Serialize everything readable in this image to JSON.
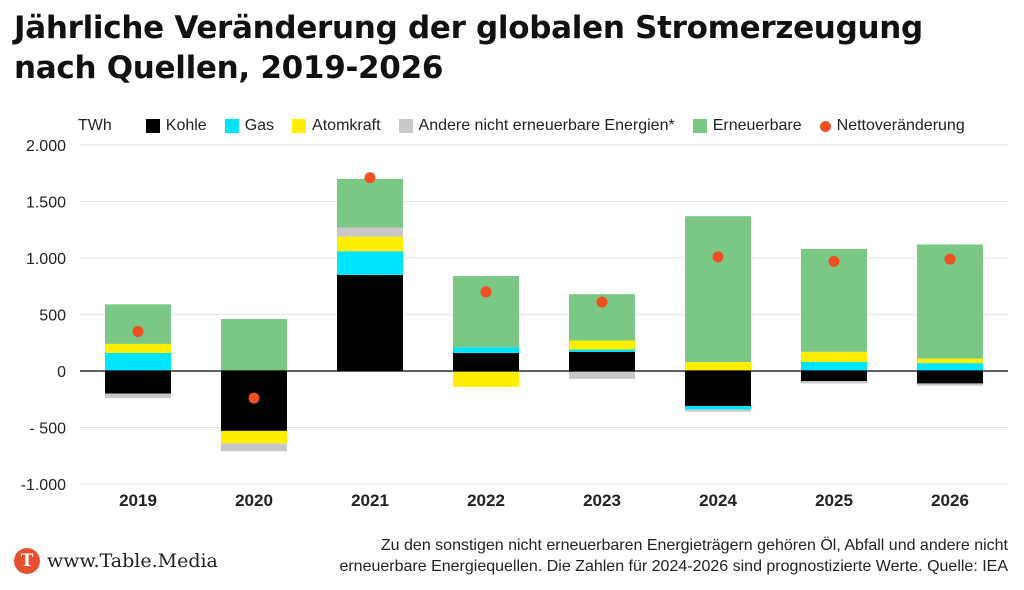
{
  "title": "Jährliche Veränderung der globalen Stromerzeugung nach Quellen, 2019-2026",
  "legend": {
    "unit": "TWh",
    "items": [
      {
        "label": "Kohle",
        "color": "#000000",
        "marker": "square"
      },
      {
        "label": "Gas",
        "color": "#00e5ff",
        "marker": "square"
      },
      {
        "label": "Atomkraft",
        "color": "#ffee00",
        "marker": "square"
      },
      {
        "label": "Andere nicht erneuerbare Energien*",
        "color": "#c8c8c8",
        "marker": "square"
      },
      {
        "label": "Erneuerbare",
        "color": "#7bc785",
        "marker": "square"
      },
      {
        "label": "Nettoveränderung",
        "color": "#f04e23",
        "marker": "dot"
      }
    ]
  },
  "chart_data": {
    "type": "bar",
    "stacked": true,
    "ylabel": "TWh",
    "ylim": [
      -1000,
      2000
    ],
    "yticks": [
      2000,
      1500,
      1000,
      500,
      0,
      -500,
      -1000
    ],
    "ytick_labels": [
      "2.000",
      "1.500",
      "1.000",
      "500",
      "0",
      "- 500",
      "-1.000"
    ],
    "grid": true,
    "legend_position": "top",
    "categories": [
      "2019",
      "2020",
      "2021",
      "2022",
      "2023",
      "2024",
      "2025",
      "2026"
    ],
    "series": [
      {
        "name": "Kohle",
        "color": "#000000",
        "values": [
          -200,
          -530,
          850,
          160,
          170,
          -310,
          -90,
          -110
        ]
      },
      {
        "name": "Gas",
        "color": "#00e5ff",
        "values": [
          160,
          0,
          210,
          50,
          20,
          -30,
          80,
          70
        ]
      },
      {
        "name": "Atomkraft",
        "color": "#ffee00",
        "values": [
          80,
          -110,
          130,
          -140,
          80,
          80,
          90,
          40
        ]
      },
      {
        "name": "Andere nicht erneuerbare Energien*",
        "color": "#c8c8c8",
        "values": [
          -40,
          -70,
          80,
          0,
          -70,
          -20,
          -20,
          -20
        ]
      },
      {
        "name": "Erneuerbare",
        "color": "#7bc785",
        "values": [
          350,
          460,
          430,
          630,
          410,
          1290,
          910,
          1010
        ]
      }
    ],
    "net": {
      "name": "Nettoveränderung",
      "color": "#f04e23",
      "values": [
        350,
        -240,
        1710,
        700,
        610,
        1010,
        970,
        990
      ]
    }
  },
  "footer": {
    "brand": "www.Table.Media",
    "brand_mark": "T",
    "note_line1": "Zu den sonstigen nicht erneuerbaren Energieträgern gehören Öl, Abfall und andere nicht",
    "note_line2": "erneuerbare Energiequellen. Die Zahlen für 2024-2026 sind prognostizierte Werte. Quelle: IEA"
  }
}
